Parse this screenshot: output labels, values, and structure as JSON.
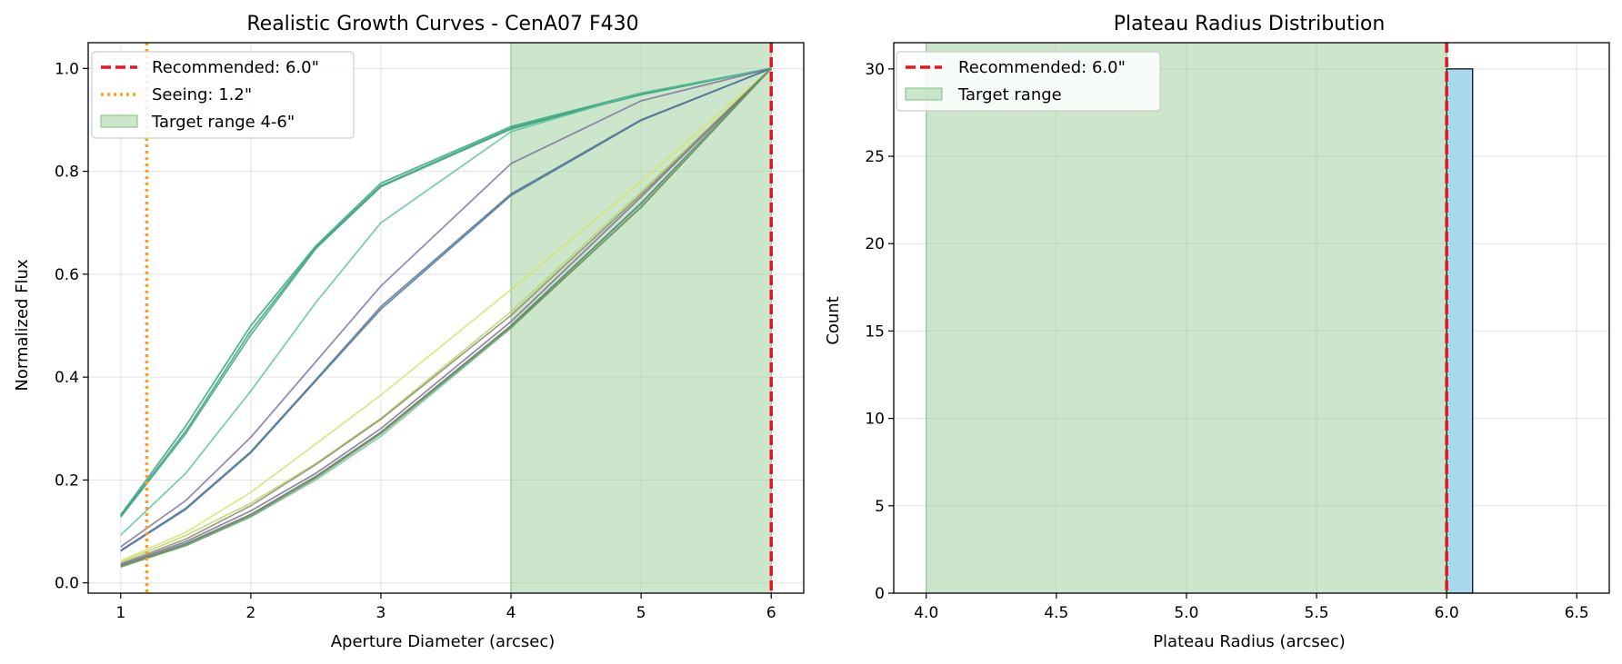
{
  "chart_data": [
    {
      "type": "line",
      "title": "Realistic Growth Curves - CenA07 F430",
      "xlabel": "Aperture Diameter (arcsec)",
      "ylabel": "Normalized Flux",
      "xlim": [
        0.75,
        6.25
      ],
      "ylim": [
        -0.02,
        1.05
      ],
      "xticks": [
        "1",
        "2",
        "3",
        "4",
        "5",
        "6"
      ],
      "yticks": [
        "0.0",
        "0.2",
        "0.4",
        "0.6",
        "0.8",
        "1.0"
      ],
      "grid": true,
      "legend_position": "top-left",
      "x": [
        1,
        1.5,
        2,
        2.5,
        3,
        4,
        5,
        6
      ],
      "series": [
        {
          "color": "#2ca07a",
          "values": [
            0.132,
            0.305,
            0.5,
            0.655,
            0.777,
            0.887,
            0.952,
            1.0
          ]
        },
        {
          "color": "#2ca07a",
          "values": [
            0.13,
            0.295,
            0.49,
            0.652,
            0.772,
            0.884,
            0.949,
            1.0
          ]
        },
        {
          "color": "#3aa07c",
          "values": [
            0.128,
            0.29,
            0.482,
            0.65,
            0.77,
            0.882,
            0.95,
            1.0
          ]
        },
        {
          "color": "#5cc29a",
          "values": [
            0.093,
            0.213,
            0.373,
            0.545,
            0.7,
            0.877,
            0.952,
            1.0
          ]
        },
        {
          "color": "#7a6fa0",
          "values": [
            0.07,
            0.16,
            0.283,
            0.43,
            0.577,
            0.815,
            0.937,
            1.0
          ]
        },
        {
          "color": "#4a6f96",
          "values": [
            0.063,
            0.145,
            0.255,
            0.395,
            0.537,
            0.756,
            0.9,
            1.0
          ]
        },
        {
          "color": "#4a6f96",
          "values": [
            0.062,
            0.143,
            0.253,
            0.393,
            0.532,
            0.753,
            0.899,
            1.0
          ]
        },
        {
          "color": "#d4e26a",
          "values": [
            0.043,
            0.098,
            0.176,
            0.27,
            0.365,
            0.57,
            0.78,
            1.0
          ]
        },
        {
          "color": "#b8d66a",
          "values": [
            0.04,
            0.092,
            0.155,
            0.232,
            0.32,
            0.527,
            0.76,
            1.0
          ]
        },
        {
          "color": "#8a8a6a",
          "values": [
            0.037,
            0.085,
            0.15,
            0.23,
            0.318,
            0.52,
            0.755,
            1.0
          ]
        },
        {
          "color": "#7c6b8f",
          "values": [
            0.035,
            0.08,
            0.14,
            0.213,
            0.3,
            0.508,
            0.75,
            1.0
          ]
        },
        {
          "color": "#4a7268",
          "values": [
            0.033,
            0.076,
            0.133,
            0.207,
            0.293,
            0.5,
            0.738,
            1.0
          ]
        },
        {
          "color": "#7ac4a6",
          "values": [
            0.032,
            0.072,
            0.128,
            0.2,
            0.285,
            0.495,
            0.733,
            1.0
          ]
        },
        {
          "color": "#6a8a4a",
          "values": [
            0.031,
            0.073,
            0.13,
            0.204,
            0.29,
            0.497,
            0.73,
            1.0
          ]
        }
      ],
      "recommended": {
        "x": 6.0,
        "label": "Recommended: 6.0\"",
        "color": "#e8151b"
      },
      "seeing": {
        "x": 1.2,
        "label": "Seeing: 1.2\"",
        "color": "#ff9e1b"
      },
      "target_range": {
        "x0": 4,
        "x1": 6,
        "label": "Target range 4-6\"",
        "color": "#9acd9a"
      }
    },
    {
      "type": "bar",
      "title": "Plateau Radius Distribution",
      "xlabel": "Plateau Radius (arcsec)",
      "ylabel": "Count",
      "xlim": [
        3.875,
        6.625
      ],
      "ylim": [
        0,
        31.5
      ],
      "xticks": [
        "4.0",
        "4.5",
        "5.0",
        "5.5",
        "6.0",
        "6.5"
      ],
      "yticks": [
        "0",
        "5",
        "10",
        "15",
        "20",
        "25",
        "30"
      ],
      "grid": true,
      "legend_position": "top-left",
      "bins": [
        {
          "x0": 6.0,
          "x1": 6.1,
          "count": 30,
          "color": "#a9d9ee"
        }
      ],
      "recommended": {
        "x": 6.0,
        "label": "Recommended: 6.0\"",
        "color": "#e8151b"
      },
      "target_range": {
        "x0": 4,
        "x1": 6,
        "label": "Target range",
        "color": "#9acd9a"
      }
    }
  ]
}
